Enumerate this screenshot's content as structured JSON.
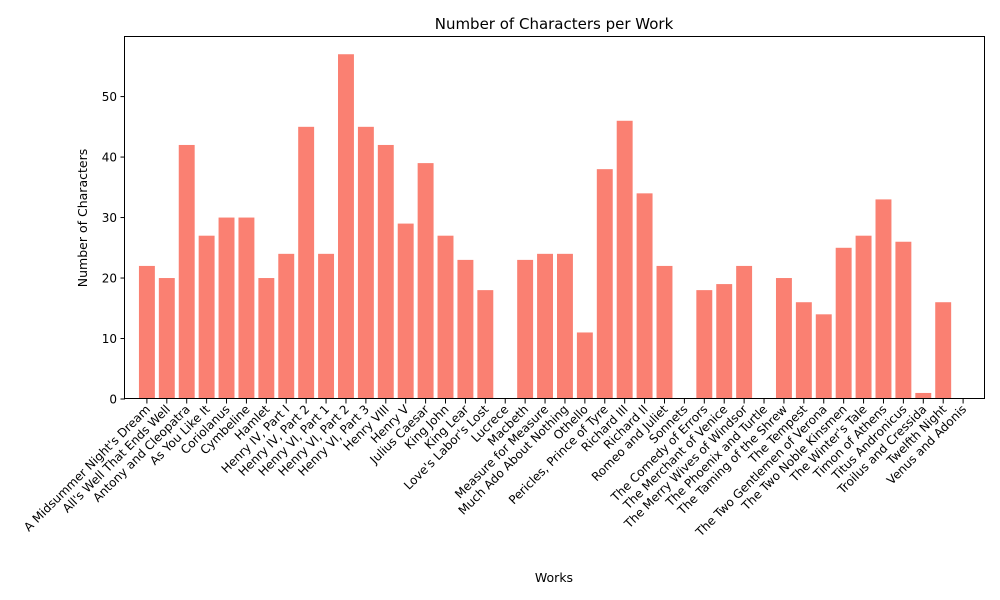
{
  "chart_data": {
    "type": "bar",
    "title": "Number of Characters per Work",
    "xlabel": "Works",
    "ylabel": "Number of Characters",
    "categories": [
      "A Midsummer Night's Dream",
      "All's Well That Ends Well",
      "Antony and Cleopatra",
      "As You Like It",
      "Coriolanus",
      "Cymbeline",
      "Hamlet",
      "Henry IV, Part I",
      "Henry IV, Part 2",
      "Henry VI, Part 1",
      "Henry VI, Part 2",
      "Henry VI, Part 3",
      "Henry VIII",
      "Henry V",
      "Julius Caesar",
      "King John",
      "King Lear",
      "Love's Labor's Lost",
      "Lucrece",
      "Macbeth",
      "Measure for Measure",
      "Much Ado About Nothing",
      "Othello",
      "Pericles, Prince of Tyre",
      "Richard III",
      "Richard II",
      "Romeo and Juliet",
      "Sonnets",
      "The Comedy of Errors",
      "The Merchant of Venice",
      "The Merry Wives of Windsor",
      "The Phoenix and Turtle",
      "The Taming of the Shrew",
      "The Tempest",
      "The Two Gentlemen of Verona",
      "The Two Noble Kinsmen",
      "The Winter's Tale",
      "Timon of Athens",
      "Titus Andronicus",
      "Troilus and Cressida",
      "Twelfth Night",
      "Venus and Adonis"
    ],
    "values": [
      22,
      20,
      42,
      27,
      30,
      30,
      20,
      24,
      45,
      24,
      57,
      45,
      42,
      29,
      39,
      27,
      23,
      18,
      0,
      23,
      24,
      24,
      11,
      38,
      46,
      34,
      22,
      0,
      18,
      19,
      22,
      0,
      20,
      16,
      14,
      25,
      27,
      33,
      26,
      1,
      16,
      0
    ],
    "ylim": [
      0,
      59.85
    ],
    "yticks": [
      0,
      10,
      20,
      30,
      40,
      50
    ],
    "grid": false,
    "colors": {
      "bar": "#fa8072"
    }
  }
}
